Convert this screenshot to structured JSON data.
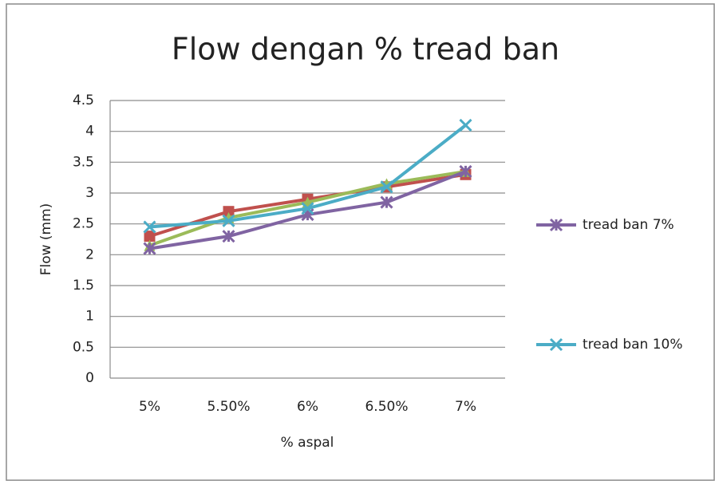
{
  "chart_data": {
    "type": "line",
    "title": "Flow dengan % tread ban",
    "x_label": "% aspal",
    "y_label": "Flow (mm)",
    "categories": [
      "5%",
      "5.50%",
      "6%",
      "6.50%",
      "7%"
    ],
    "series": [
      {
        "color": "#c0504d",
        "marker": "square",
        "values": [
          2.3,
          2.7,
          2.9,
          3.1,
          3.3
        ]
      },
      {
        "color": "#9bbb59",
        "marker": "triangle",
        "values": [
          2.15,
          2.6,
          2.85,
          3.15,
          3.35
        ]
      },
      {
        "name": "tread ban 7%",
        "color": "#8064a2",
        "marker": "star",
        "values": [
          2.1,
          2.3,
          2.65,
          2.85,
          3.35
        ]
      },
      {
        "name": "tread ban 10%",
        "color": "#4bacc6",
        "marker": "x",
        "values": [
          2.45,
          2.55,
          2.75,
          3.1,
          4.1
        ]
      }
    ],
    "ylim": [
      0,
      4.5
    ],
    "yticks": [
      0,
      0.5,
      1,
      1.5,
      2,
      2.5,
      3,
      3.5,
      4,
      4.5
    ],
    "grid": true
  }
}
